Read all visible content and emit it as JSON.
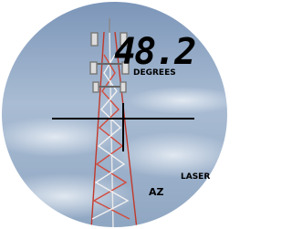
{
  "readout": "48.2",
  "unit": "DEGREES",
  "mode": "AZ",
  "status": "LASER"
}
